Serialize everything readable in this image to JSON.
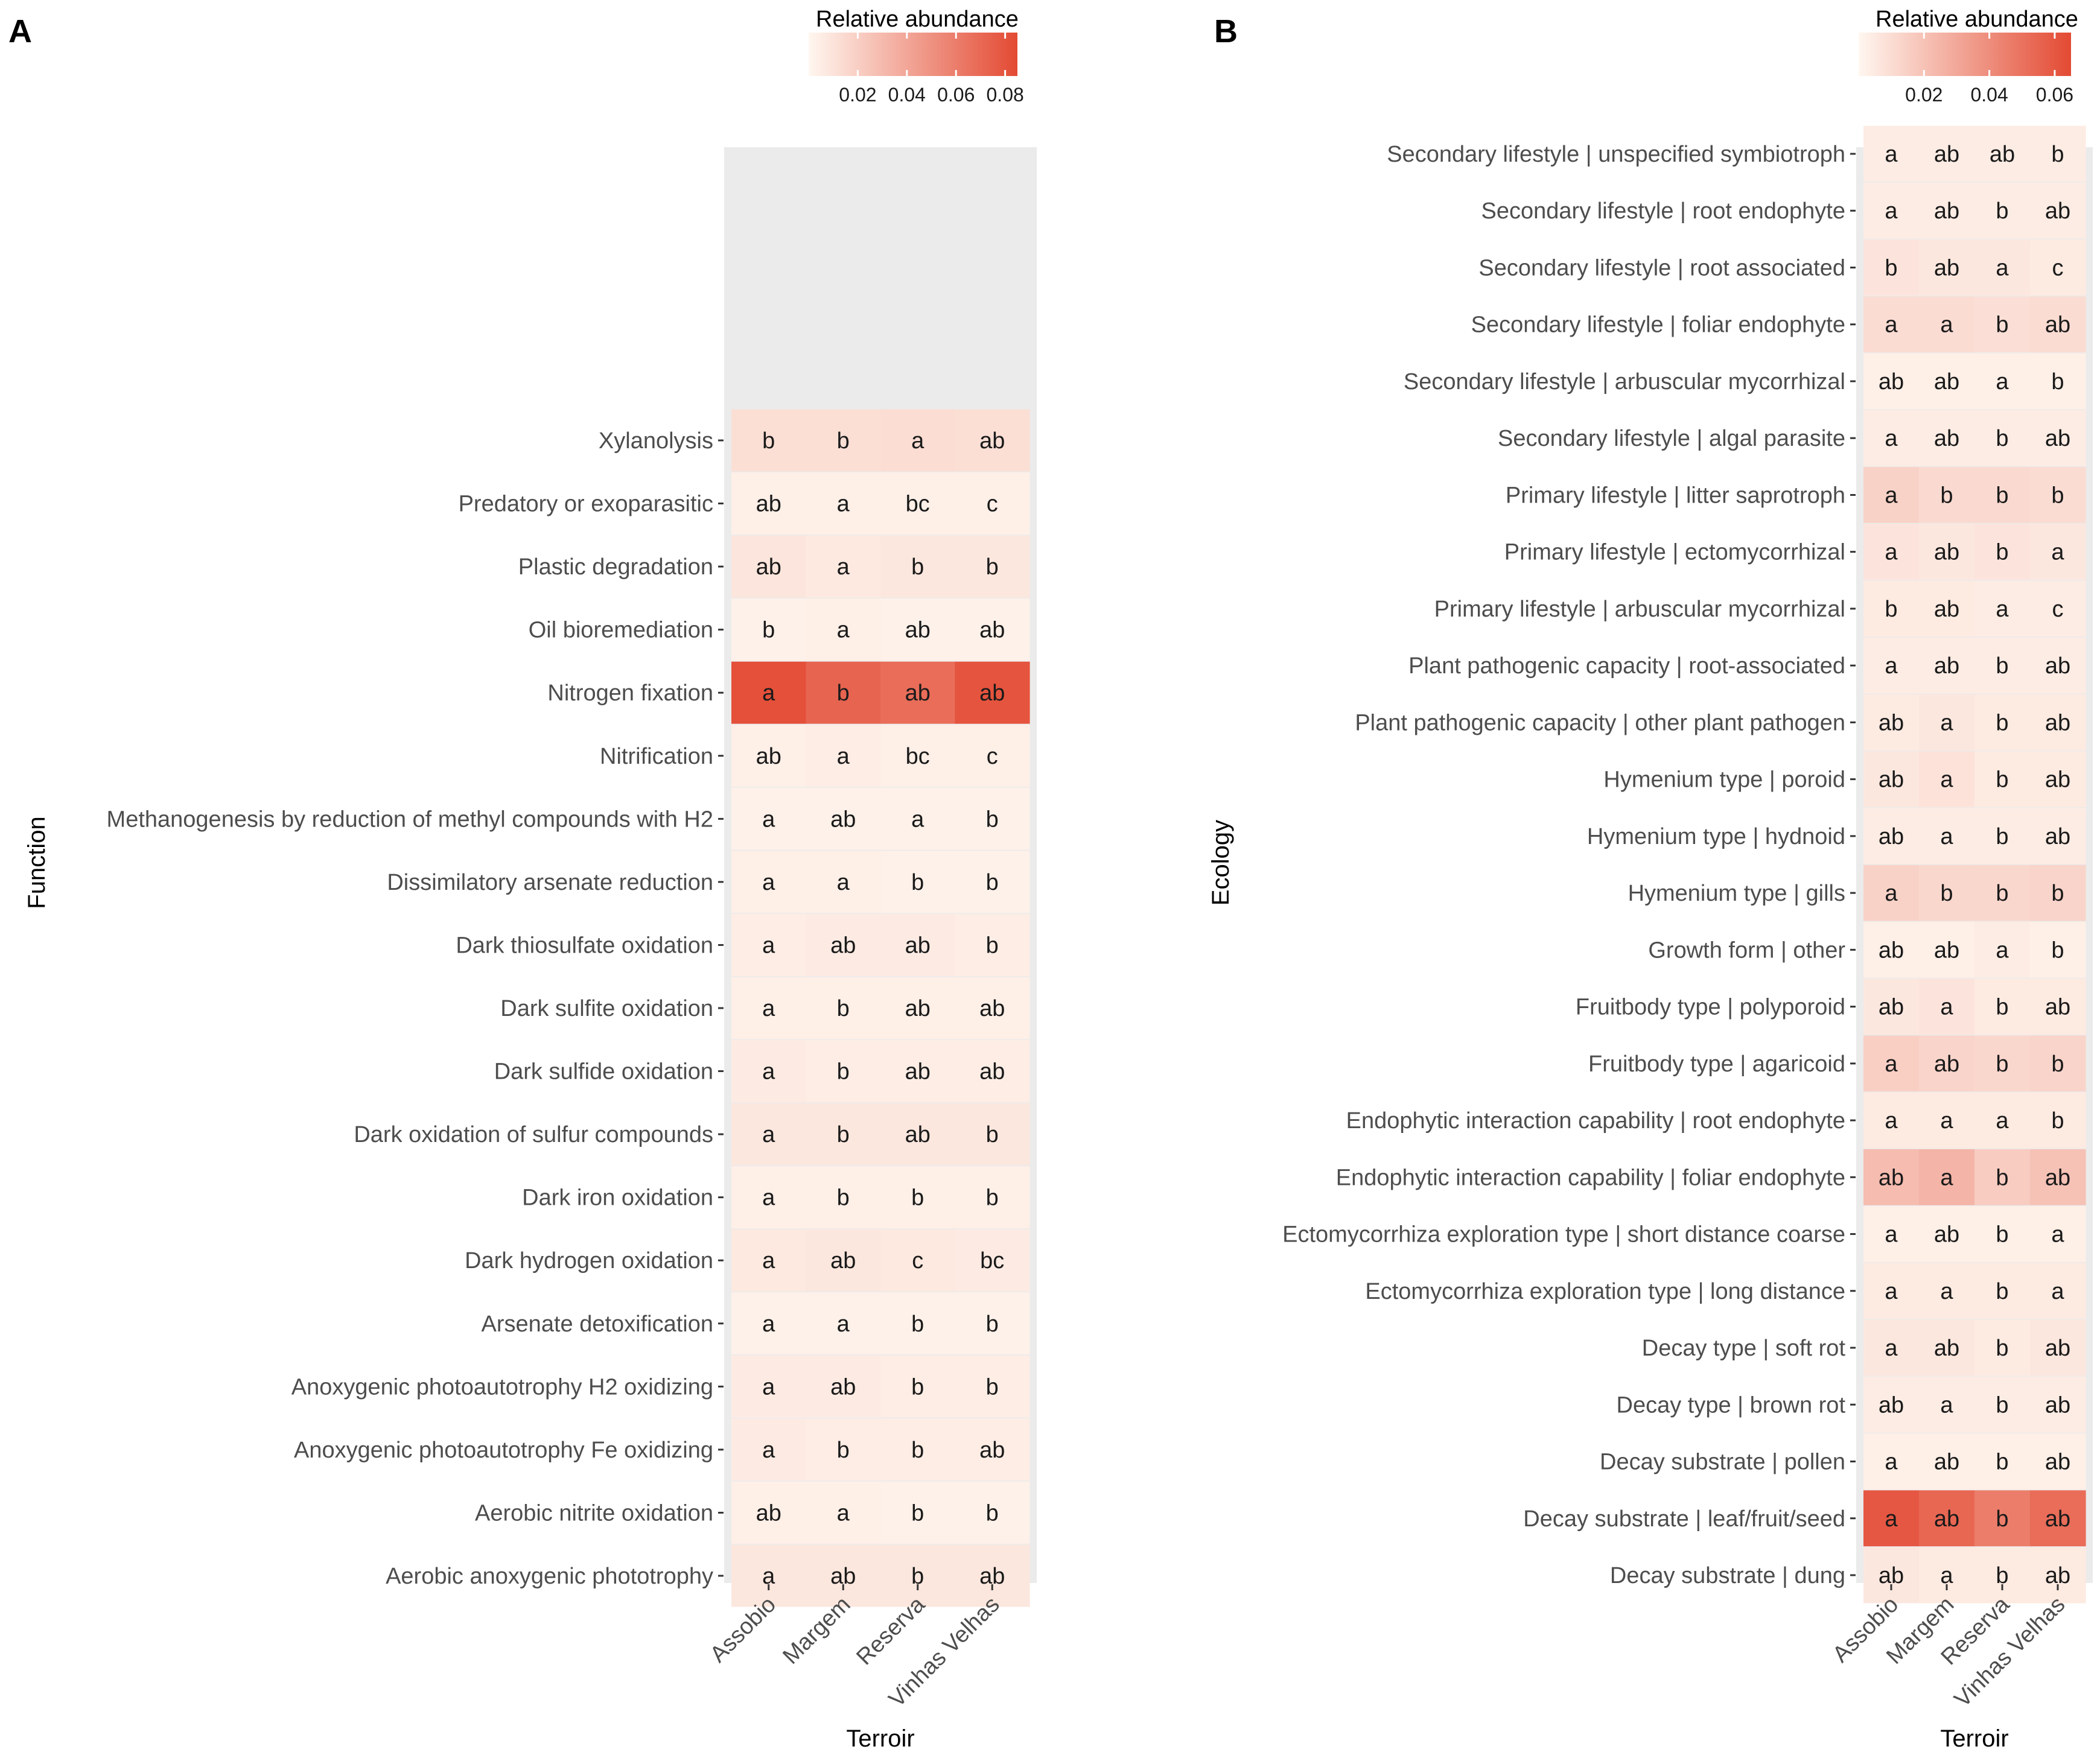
{
  "chart_data": [
    {
      "type": "heatmap",
      "panel": "A",
      "title": "",
      "xlabel": "Terroir",
      "ylabel": "Function",
      "legend": {
        "title": "Relative abundance",
        "ticks": [
          0.02,
          0.04,
          0.06,
          0.08
        ],
        "tick_labels": [
          "0.02",
          "0.04",
          "0.06",
          "0.08"
        ],
        "range": [
          0,
          0.085
        ],
        "placement": "top-right",
        "low_color": "#fff7f0",
        "high_color": "#e34a33"
      },
      "categories": [
        "Assobio",
        "Margem",
        "Reserva",
        "Vinhas Velhas"
      ],
      "rows": [
        {
          "label": "Xylanolysis",
          "values": [
            0.012,
            0.012,
            0.013,
            0.012
          ],
          "letters": [
            "b",
            "b",
            "a",
            "ab"
          ]
        },
        {
          "label": "Predatory or exoparasitic",
          "values": [
            0.004,
            0.004,
            0.004,
            0.004
          ],
          "letters": [
            "ab",
            "a",
            "bc",
            "c"
          ]
        },
        {
          "label": "Plastic degradation",
          "values": [
            0.009,
            0.007,
            0.008,
            0.008
          ],
          "letters": [
            "ab",
            "a",
            "b",
            "b"
          ]
        },
        {
          "label": "Oil bioremediation",
          "values": [
            0.003,
            0.004,
            0.003,
            0.003
          ],
          "letters": [
            "b",
            "a",
            "ab",
            "ab"
          ]
        },
        {
          "label": "Nitrogen fixation",
          "values": [
            0.082,
            0.072,
            0.068,
            0.08
          ],
          "letters": [
            "a",
            "b",
            "ab",
            "ab"
          ]
        },
        {
          "label": "Nitrification",
          "values": [
            0.004,
            0.005,
            0.004,
            0.004
          ],
          "letters": [
            "ab",
            "a",
            "bc",
            "c"
          ]
        },
        {
          "label": "Methanogenesis by reduction of methyl compounds with H2",
          "values": [
            0.003,
            0.003,
            0.003,
            0.003
          ],
          "letters": [
            "a",
            "ab",
            "a",
            "b"
          ]
        },
        {
          "label": "Dissimilatory arsenate reduction",
          "values": [
            0.004,
            0.004,
            0.003,
            0.003
          ],
          "letters": [
            "a",
            "a",
            "b",
            "b"
          ]
        },
        {
          "label": "Dark thiosulfate oxidation",
          "values": [
            0.005,
            0.006,
            0.006,
            0.005
          ],
          "letters": [
            "a",
            "ab",
            "ab",
            "b"
          ]
        },
        {
          "label": "Dark sulfite oxidation",
          "values": [
            0.004,
            0.004,
            0.004,
            0.004
          ],
          "letters": [
            "a",
            "b",
            "ab",
            "ab"
          ]
        },
        {
          "label": "Dark sulfide oxidation",
          "values": [
            0.006,
            0.005,
            0.005,
            0.005
          ],
          "letters": [
            "a",
            "b",
            "ab",
            "ab"
          ]
        },
        {
          "label": "Dark oxidation of sulfur compounds",
          "values": [
            0.008,
            0.008,
            0.008,
            0.008
          ],
          "letters": [
            "a",
            "b",
            "ab",
            "b"
          ]
        },
        {
          "label": "Dark iron oxidation",
          "values": [
            0.004,
            0.004,
            0.004,
            0.004
          ],
          "letters": [
            "a",
            "b",
            "b",
            "b"
          ]
        },
        {
          "label": "Dark hydrogen oxidation",
          "values": [
            0.007,
            0.008,
            0.007,
            0.006
          ],
          "letters": [
            "a",
            "ab",
            "c",
            "bc"
          ]
        },
        {
          "label": "Arsenate detoxification",
          "values": [
            0.003,
            0.003,
            0.003,
            0.003
          ],
          "letters": [
            "a",
            "a",
            "b",
            "b"
          ]
        },
        {
          "label": "Anoxygenic photoautotrophy H2 oxidizing",
          "values": [
            0.006,
            0.006,
            0.005,
            0.005
          ],
          "letters": [
            "a",
            "ab",
            "b",
            "b"
          ]
        },
        {
          "label": "Anoxygenic photoautotrophy Fe oxidizing",
          "values": [
            0.006,
            0.005,
            0.005,
            0.005
          ],
          "letters": [
            "a",
            "b",
            "b",
            "ab"
          ]
        },
        {
          "label": "Aerobic nitrite oxidation",
          "values": [
            0.004,
            0.004,
            0.003,
            0.003
          ],
          "letters": [
            "ab",
            "a",
            "b",
            "b"
          ]
        },
        {
          "label": "Aerobic anoxygenic phototrophy",
          "values": [
            0.008,
            0.008,
            0.008,
            0.008
          ],
          "letters": [
            "a",
            "ab",
            "b",
            "ab"
          ]
        }
      ]
    },
    {
      "type": "heatmap",
      "panel": "B",
      "title": "",
      "xlabel": "Terroir",
      "ylabel": "Ecology",
      "legend": {
        "title": "Relative abundance",
        "ticks": [
          0.02,
          0.04,
          0.06
        ],
        "tick_labels": [
          "0.02",
          "0.04",
          "0.06"
        ],
        "range": [
          0,
          0.065
        ],
        "placement": "top-right",
        "low_color": "#fff7f0",
        "high_color": "#e34a33"
      },
      "categories": [
        "Assobio",
        "Margem",
        "Reserva",
        "Vinhas Velhas"
      ],
      "rows": [
        {
          "label": "Secondary lifestyle | unspecified symbiotroph",
          "values": [
            0.004,
            0.004,
            0.004,
            0.004
          ],
          "letters": [
            "a",
            "ab",
            "ab",
            "b"
          ]
        },
        {
          "label": "Secondary lifestyle | root endophyte",
          "values": [
            0.004,
            0.004,
            0.004,
            0.004
          ],
          "letters": [
            "a",
            "ab",
            "b",
            "ab"
          ]
        },
        {
          "label": "Secondary lifestyle | root associated",
          "values": [
            0.007,
            0.006,
            0.006,
            0.005
          ],
          "letters": [
            "b",
            "ab",
            "a",
            "c"
          ]
        },
        {
          "label": "Secondary lifestyle | foliar endophyte",
          "values": [
            0.01,
            0.01,
            0.009,
            0.01
          ],
          "letters": [
            "a",
            "a",
            "b",
            "ab"
          ]
        },
        {
          "label": "Secondary lifestyle | arbuscular mycorrhizal",
          "values": [
            0.003,
            0.003,
            0.003,
            0.003
          ],
          "letters": [
            "ab",
            "ab",
            "a",
            "b"
          ]
        },
        {
          "label": "Secondary lifestyle | algal parasite",
          "values": [
            0.004,
            0.004,
            0.004,
            0.004
          ],
          "letters": [
            "a",
            "ab",
            "b",
            "ab"
          ]
        },
        {
          "label": "Primary lifestyle | litter saprotroph",
          "values": [
            0.014,
            0.011,
            0.011,
            0.01
          ],
          "letters": [
            "a",
            "b",
            "b",
            "b"
          ]
        },
        {
          "label": "Primary lifestyle | ectomycorrhizal",
          "values": [
            0.007,
            0.006,
            0.007,
            0.006
          ],
          "letters": [
            "a",
            "ab",
            "b",
            "a"
          ]
        },
        {
          "label": "Primary lifestyle | arbuscular mycorrhizal",
          "values": [
            0.005,
            0.005,
            0.004,
            0.004
          ],
          "letters": [
            "b",
            "ab",
            "a",
            "c"
          ]
        },
        {
          "label": "Plant pathogenic capacity | root-associated",
          "values": [
            0.004,
            0.004,
            0.004,
            0.004
          ],
          "letters": [
            "a",
            "ab",
            "b",
            "ab"
          ]
        },
        {
          "label": "Plant pathogenic capacity | other plant pathogen",
          "values": [
            0.005,
            0.006,
            0.005,
            0.005
          ],
          "letters": [
            "ab",
            "a",
            "b",
            "ab"
          ]
        },
        {
          "label": "Hymenium type | poroid",
          "values": [
            0.006,
            0.008,
            0.005,
            0.005
          ],
          "letters": [
            "ab",
            "a",
            "b",
            "ab"
          ]
        },
        {
          "label": "Hymenium type | hydnoid",
          "values": [
            0.004,
            0.004,
            0.004,
            0.004
          ],
          "letters": [
            "ab",
            "a",
            "b",
            "ab"
          ]
        },
        {
          "label": "Hymenium type | gills",
          "values": [
            0.014,
            0.012,
            0.012,
            0.013
          ],
          "letters": [
            "a",
            "b",
            "b",
            "b"
          ]
        },
        {
          "label": "Growth form | other",
          "values": [
            0.003,
            0.003,
            0.004,
            0.003
          ],
          "letters": [
            "ab",
            "ab",
            "a",
            "b"
          ]
        },
        {
          "label": "Fruitbody type | polyporoid",
          "values": [
            0.006,
            0.007,
            0.005,
            0.005
          ],
          "letters": [
            "ab",
            "a",
            "b",
            "ab"
          ]
        },
        {
          "label": "Fruitbody type | agaricoid",
          "values": [
            0.015,
            0.013,
            0.012,
            0.013
          ],
          "letters": [
            "a",
            "ab",
            "b",
            "b"
          ]
        },
        {
          "label": "Endophytic interaction capability | root endophyte",
          "values": [
            0.005,
            0.005,
            0.005,
            0.005
          ],
          "letters": [
            "a",
            "a",
            "a",
            "b"
          ]
        },
        {
          "label": "Endophytic interaction capability | foliar endophyte",
          "values": [
            0.022,
            0.025,
            0.016,
            0.02
          ],
          "letters": [
            "ab",
            "a",
            "b",
            "ab"
          ]
        },
        {
          "label": "Ectomycorrhiza exploration type | short distance coarse",
          "values": [
            0.003,
            0.003,
            0.003,
            0.003
          ],
          "letters": [
            "a",
            "ab",
            "b",
            "a"
          ]
        },
        {
          "label": "Ectomycorrhiza exploration type | long distance",
          "values": [
            0.005,
            0.005,
            0.005,
            0.005
          ],
          "letters": [
            "a",
            "a",
            "b",
            "a"
          ]
        },
        {
          "label": "Decay type | soft rot",
          "values": [
            0.006,
            0.006,
            0.005,
            0.006
          ],
          "letters": [
            "a",
            "ab",
            "b",
            "ab"
          ]
        },
        {
          "label": "Decay type | brown rot",
          "values": [
            0.004,
            0.004,
            0.004,
            0.004
          ],
          "letters": [
            "ab",
            "a",
            "b",
            "ab"
          ]
        },
        {
          "label": "Decay substrate | pollen",
          "values": [
            0.003,
            0.003,
            0.003,
            0.003
          ],
          "letters": [
            "a",
            "ab",
            "b",
            "ab"
          ]
        },
        {
          "label": "Decay substrate | leaf/fruit/seed",
          "values": [
            0.06,
            0.054,
            0.046,
            0.052
          ],
          "letters": [
            "a",
            "ab",
            "b",
            "ab"
          ]
        },
        {
          "label": "Decay substrate | dung",
          "values": [
            0.006,
            0.005,
            0.005,
            0.005
          ],
          "letters": [
            "ab",
            "a",
            "b",
            "ab"
          ]
        }
      ]
    }
  ]
}
